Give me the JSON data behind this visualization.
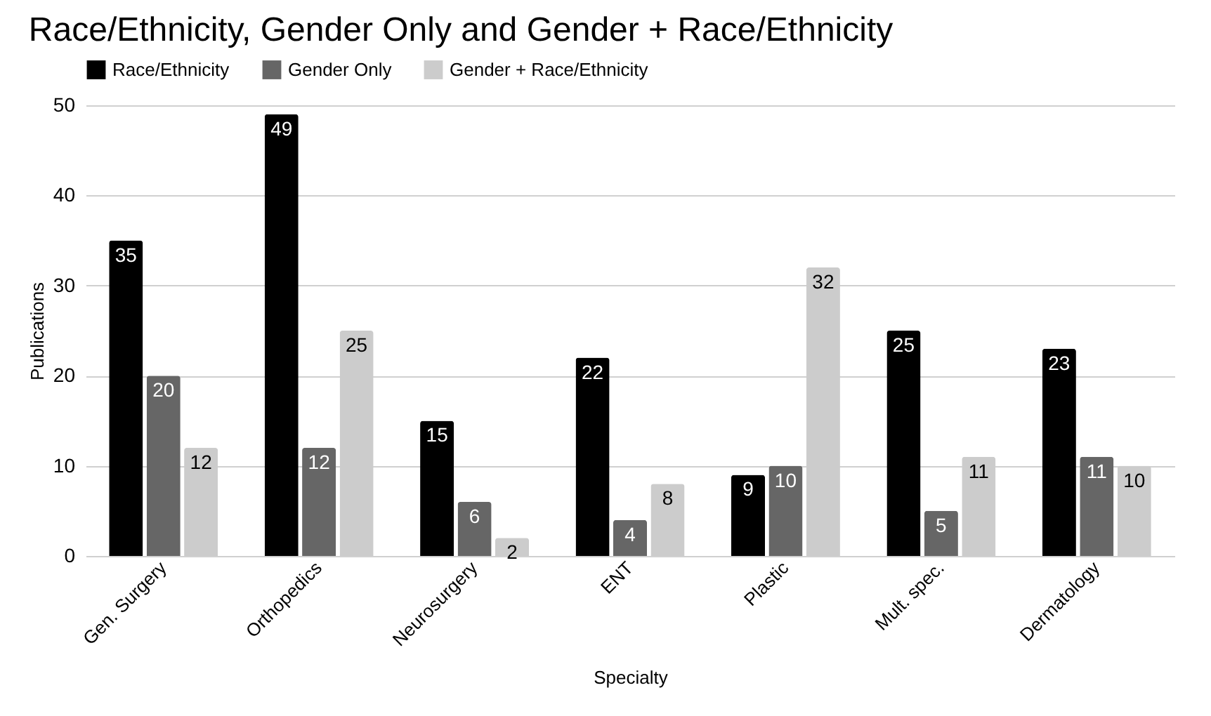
{
  "chart_data": {
    "type": "bar",
    "title": "Race/Ethnicity, Gender Only and Gender + Race/Ethnicity",
    "xlabel": "Specialty",
    "ylabel": "Publications",
    "categories": [
      "Gen. Surgery",
      "Orthopedics",
      "Neurosurgery",
      "ENT",
      "Plastic",
      "Mult. spec.",
      "Dermatology"
    ],
    "series": [
      {
        "name": "Race/Ethnicity",
        "color": "#000000",
        "values": [
          35,
          49,
          15,
          22,
          9,
          25,
          23
        ]
      },
      {
        "name": "Gender Only",
        "color": "#666666",
        "values": [
          20,
          12,
          6,
          4,
          10,
          5,
          11
        ]
      },
      {
        "name": "Gender + Race/Ethnicity",
        "color": "#cccccc",
        "values": [
          12,
          25,
          2,
          8,
          32,
          11,
          10
        ]
      }
    ],
    "ylim": [
      0,
      50
    ],
    "yticks": [
      0,
      10,
      20,
      30,
      40,
      50
    ],
    "grid": "y",
    "legend": "top",
    "data_labels": true
  }
}
